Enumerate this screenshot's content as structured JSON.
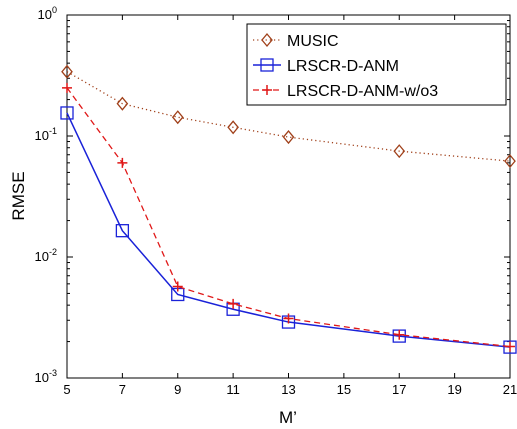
{
  "chart_data": {
    "type": "line",
    "title": "",
    "xlabel": "M’",
    "ylabel": "RMSE",
    "x": [
      5,
      7,
      9,
      11,
      13,
      17,
      21
    ],
    "x_ticks": [
      5,
      7,
      9,
      11,
      13,
      15,
      17,
      19,
      21
    ],
    "xlim": [
      5,
      21
    ],
    "yscale": "log",
    "ylim": [
      0.001,
      1
    ],
    "y_ticks": [
      {
        "value": 1,
        "base": "10",
        "exp": "0"
      },
      {
        "value": 0.1,
        "base": "10",
        "exp": "-1"
      },
      {
        "value": 0.01,
        "base": "10",
        "exp": "-2"
      },
      {
        "value": 0.001,
        "base": "10",
        "exp": "-3"
      }
    ],
    "grid": false,
    "legend_position": "top-right",
    "series": [
      {
        "name": "MUSIC",
        "color": "#a0401a",
        "line_style": "dotted",
        "marker": "diamond",
        "values": [
          0.34,
          0.185,
          0.143,
          0.118,
          0.098,
          0.075,
          0.062
        ]
      },
      {
        "name": "LRSCR-D-ANM",
        "color": "#1a22d8",
        "line_style": "solid",
        "marker": "square",
        "values": [
          0.155,
          0.0165,
          0.0049,
          0.0037,
          0.0029,
          0.00222,
          0.0018
        ]
      },
      {
        "name": "LRSCR-D-ANM-w/o3",
        "color": "#e01818",
        "line_style": "dashed",
        "marker": "plus",
        "values": [
          0.25,
          0.06,
          0.0057,
          0.0041,
          0.0031,
          0.00228,
          0.00182
        ]
      }
    ]
  }
}
